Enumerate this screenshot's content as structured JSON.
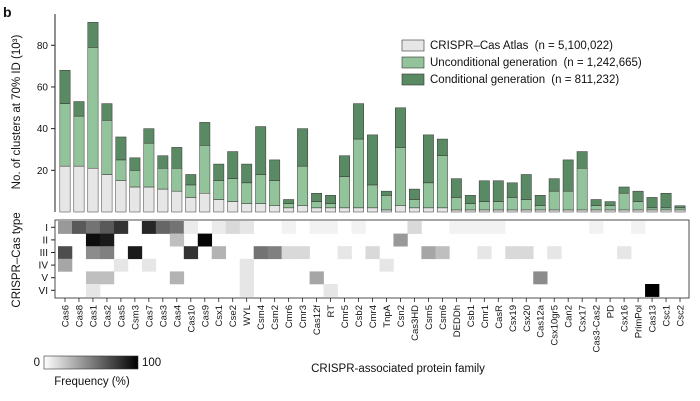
{
  "panel_label": "b",
  "colors": {
    "atlas": "#e6e6e6",
    "unconditional": "#93c39a",
    "conditional": "#5a8a63",
    "bar_stroke": "#333333"
  },
  "frequency_scale": {
    "min_label": "0",
    "max_label": "100",
    "label": "Frequency (%)"
  },
  "chart_data": {
    "type": "bar",
    "stacked": true,
    "ylabel": "No. of clusters at 70% ID (10³)",
    "xlabel": "CRISPR-associated protein family",
    "ylim": [
      0,
      95
    ],
    "yticks": [
      20,
      40,
      60,
      80
    ],
    "legend_position": "top-right",
    "categories": [
      "Cas6",
      "Cas8",
      "Cas1",
      "Cas2",
      "Cas5",
      "Csm3",
      "Cas7",
      "Cas3",
      "Cas4",
      "Cas10",
      "Cas9",
      "Csx1",
      "Cse2",
      "WYL",
      "Csm4",
      "Csm2",
      "Cmr6",
      "Cmr3",
      "Cas12f",
      "RT",
      "Cmr5",
      "Csb2",
      "Cmr4",
      "TnpA",
      "Csn2",
      "Cas3HD",
      "Csm5",
      "Csm6",
      "DEDDh",
      "Csb1",
      "Cmr1",
      "CasR",
      "Csx19",
      "Csx20",
      "Cas12a",
      "Csx10gr5",
      "Can2",
      "Csx17",
      "Cas3-Cas2",
      "PD",
      "Csx16",
      "PrimPol",
      "Cas13",
      "Csc1",
      "Csc2"
    ],
    "series": [
      {
        "name": "CRISPR–Cas Atlas",
        "n_label": "(n = 5,100,022)",
        "values": [
          22,
          22,
          21,
          18,
          15,
          12,
          12,
          11,
          10,
          7,
          9,
          6,
          5,
          4,
          4,
          3,
          2,
          3,
          2,
          2,
          2,
          2,
          2,
          1,
          3,
          2,
          2,
          2,
          1,
          1,
          1,
          1,
          1,
          1,
          1,
          1,
          1,
          1,
          1,
          1,
          1,
          1,
          1,
          1,
          1
        ]
      },
      {
        "name": "Unconditional generation",
        "n_label": "(n = 1,242,665)",
        "values": [
          30,
          24,
          58,
          26,
          10,
          8,
          21,
          10,
          11,
          6,
          23,
          9,
          11,
          10,
          14,
          12,
          2,
          19,
          3,
          2,
          15,
          33,
          11,
          7,
          28,
          4,
          12,
          25,
          6,
          3,
          4,
          4,
          6,
          5,
          2,
          9,
          9,
          20,
          2,
          2,
          8,
          4,
          1,
          1,
          1
        ]
      },
      {
        "name": "Conditional generation",
        "n_label": "(n = 811,232)",
        "values": [
          16,
          7,
          12,
          8,
          11,
          6,
          7,
          6,
          10,
          5,
          11,
          8,
          13,
          9,
          23,
          10,
          2,
          18,
          4,
          4,
          10,
          17,
          24,
          2,
          19,
          5,
          23,
          8,
          9,
          4,
          10,
          10,
          7,
          12,
          5,
          6,
          15,
          8,
          3,
          2,
          3,
          5,
          5,
          7,
          1
        ]
      }
    ],
    "heatmap": {
      "row_title": "CRISPR–Cas type",
      "rows": [
        "I",
        "II",
        "III",
        "IV",
        "V",
        "VI"
      ],
      "cells": [
        [
          [
            "Cas6",
            40
          ],
          [
            "Cas8",
            65
          ],
          [
            "Cas1",
            55
          ],
          [
            "Cas2",
            65
          ],
          [
            "Cas5",
            80
          ],
          [
            "Cas7",
            85
          ],
          [
            "Cas3",
            60
          ],
          [
            "Cas4",
            55
          ],
          [
            "Cas10",
            8
          ],
          [
            "Csx1",
            8
          ],
          [
            "Cse2",
            15
          ],
          [
            "WYL",
            10
          ],
          [
            "Cmr6",
            5
          ],
          [
            "Cas12f",
            5
          ],
          [
            "RT",
            5
          ],
          [
            "Csb2",
            5
          ],
          [
            "Cas3HD",
            15
          ],
          [
            "DEDDh",
            5
          ],
          [
            "Csb1",
            5
          ],
          [
            "Cmr1",
            5
          ],
          [
            "CasR",
            5
          ],
          [
            "Cas3-Cas2",
            5
          ],
          [
            "PrimPol",
            5
          ]
        ],
        [
          [
            "Cas1",
            95
          ],
          [
            "Cas2",
            90
          ],
          [
            "Cas4",
            25
          ],
          [
            "Cas9",
            98
          ],
          [
            "Csn2",
            40
          ]
        ],
        [
          [
            "Cas6",
            70
          ],
          [
            "Cas1",
            45
          ],
          [
            "Cas2",
            50
          ],
          [
            "Csm3",
            90
          ],
          [
            "Cas10",
            80
          ],
          [
            "Csx1",
            30
          ],
          [
            "Csm4",
            55
          ],
          [
            "Csm2",
            50
          ],
          [
            "Cmr6",
            15
          ],
          [
            "Cmr3",
            15
          ],
          [
            "Cmr5",
            10
          ],
          [
            "Cmr4",
            15
          ],
          [
            "Csm5",
            35
          ],
          [
            "Csm6",
            25
          ],
          [
            "Cmr1",
            10
          ],
          [
            "Csx19",
            15
          ],
          [
            "Csx20",
            15
          ],
          [
            "Csx10gr5",
            10
          ],
          [
            "Csx16",
            10
          ]
        ],
        [
          [
            "Cas6",
            35
          ],
          [
            "Cas7",
            10
          ],
          [
            "Cas5",
            10
          ],
          [
            "TnpA",
            10
          ],
          [
            "WYL",
            10
          ]
        ],
        [
          [
            "Cas1",
            25
          ],
          [
            "Cas2",
            25
          ],
          [
            "Cas4",
            30
          ],
          [
            "Cas12f",
            35
          ],
          [
            "Cas12a",
            45
          ],
          [
            "WYL",
            10
          ]
        ],
        [
          [
            "Cas1",
            10
          ],
          [
            "RT",
            10
          ],
          [
            "Cas13",
            100
          ],
          [
            "WYL",
            10
          ]
        ]
      ]
    }
  }
}
